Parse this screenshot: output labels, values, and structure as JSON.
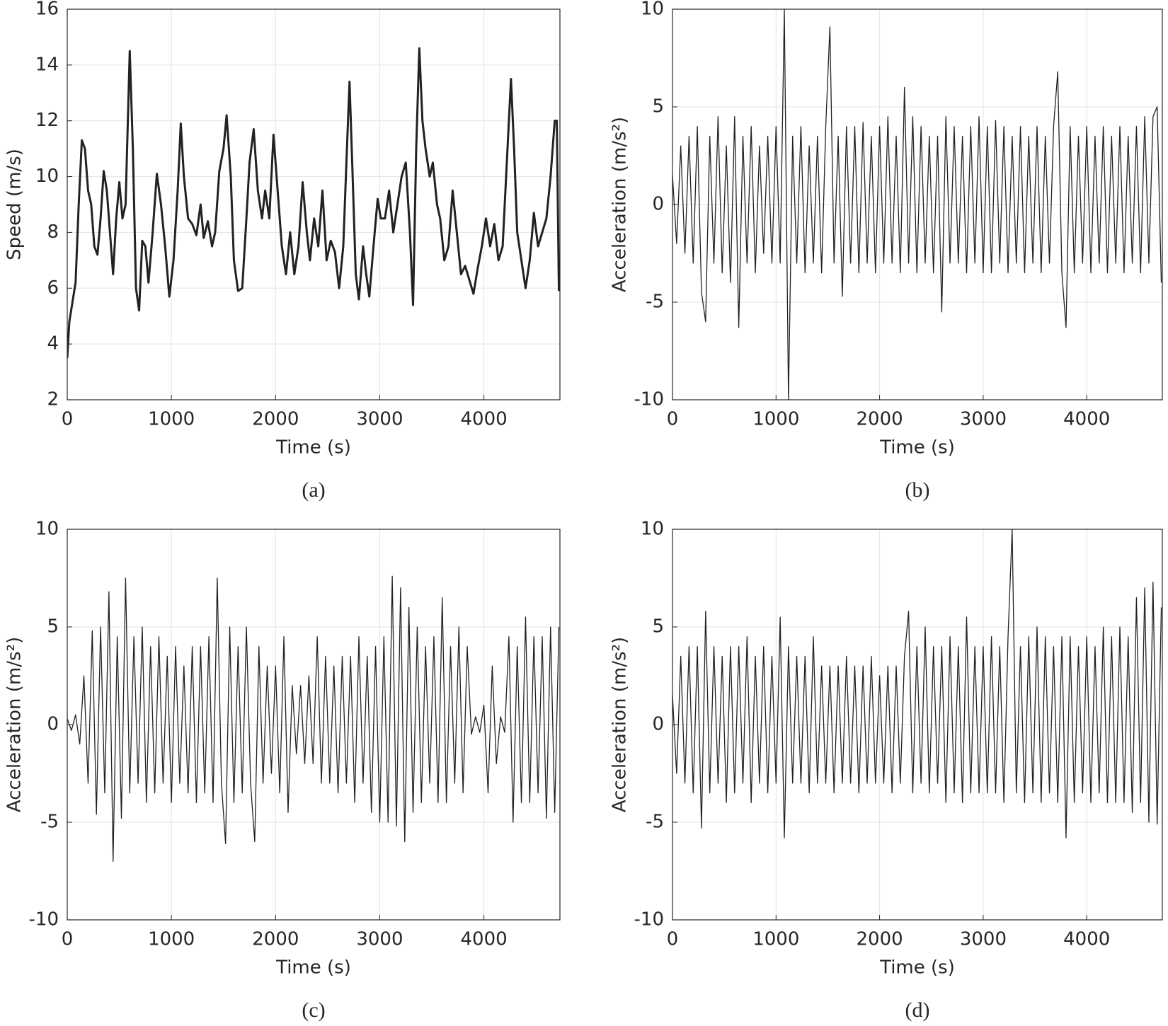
{
  "chart_data": [
    {
      "type": "line",
      "caption": "(a)",
      "xlabel": "Time (s)",
      "ylabel": "Speed (m/s)",
      "color": "#222222",
      "grid": true,
      "xlim": [
        0,
        4730
      ],
      "xticks": [
        0,
        1000,
        2000,
        3000,
        4000
      ],
      "ylim": [
        2,
        16
      ],
      "yticks": [
        2,
        4,
        6,
        8,
        10,
        12,
        14,
        16
      ],
      "x": [
        0,
        20,
        50,
        80,
        110,
        140,
        170,
        200,
        230,
        260,
        290,
        320,
        350,
        380,
        410,
        440,
        470,
        500,
        530,
        560,
        600,
        630,
        660,
        690,
        720,
        750,
        780,
        820,
        860,
        900,
        940,
        980,
        1020,
        1060,
        1090,
        1120,
        1160,
        1200,
        1240,
        1280,
        1310,
        1350,
        1390,
        1420,
        1460,
        1500,
        1530,
        1570,
        1600,
        1640,
        1680,
        1720,
        1750,
        1790,
        1830,
        1870,
        1900,
        1940,
        1980,
        2020,
        2060,
        2100,
        2140,
        2180,
        2220,
        2260,
        2300,
        2330,
        2370,
        2410,
        2450,
        2490,
        2530,
        2570,
        2610,
        2650,
        2680,
        2710,
        2740,
        2770,
        2800,
        2840,
        2870,
        2900,
        2940,
        2980,
        3010,
        3050,
        3090,
        3130,
        3170,
        3210,
        3250,
        3290,
        3320,
        3350,
        3380,
        3410,
        3440,
        3480,
        3510,
        3550,
        3580,
        3620,
        3660,
        3700,
        3740,
        3780,
        3820,
        3860,
        3900,
        3940,
        3980,
        4020,
        4060,
        4100,
        4140,
        4180,
        4220,
        4260,
        4290,
        4320,
        4360,
        4400,
        4440,
        4480,
        4520,
        4560,
        4600,
        4640,
        4680,
        4700,
        4720
      ],
      "values": [
        3.5,
        4.8,
        5.5,
        6.2,
        9,
        11.3,
        11,
        9.5,
        9,
        7.5,
        7.2,
        8.5,
        10.2,
        9.5,
        8,
        6.5,
        8.5,
        9.8,
        8.5,
        9,
        14.5,
        11,
        6,
        5.2,
        7.7,
        7.5,
        6.2,
        8,
        10.1,
        9,
        7.5,
        5.7,
        7,
        9.5,
        11.9,
        10,
        8.5,
        8.3,
        7.9,
        9,
        7.8,
        8.4,
        7.5,
        8,
        10.2,
        11,
        12.2,
        10,
        7,
        5.9,
        6,
        8.5,
        10.5,
        11.7,
        9.5,
        8.5,
        9.5,
        8.5,
        11.5,
        9.5,
        7.5,
        6.5,
        8,
        6.5,
        7.5,
        9.8,
        8,
        7,
        8.5,
        7.5,
        9.5,
        7,
        7.7,
        7.3,
        6,
        7.5,
        10.5,
        13.4,
        10,
        6.5,
        5.6,
        7.5,
        6.5,
        5.7,
        7.5,
        9.2,
        8.5,
        8.5,
        9.5,
        8,
        9,
        10,
        10.5,
        8,
        5.4,
        11,
        14.6,
        12,
        11,
        10,
        10.5,
        9,
        8.5,
        7,
        7.5,
        9.5,
        8,
        6.5,
        6.8,
        6.3,
        5.8,
        6.7,
        7.5,
        8.5,
        7.5,
        8.3,
        7,
        7.5,
        10.5,
        13.5,
        11,
        8,
        7,
        6,
        7,
        8.7,
        7.5,
        8,
        8.5,
        10,
        12,
        12,
        5.9
      ]
    },
    {
      "type": "line",
      "caption": "(b)",
      "xlabel": "Time (s)",
      "ylabel": "Acceleration (m/s²)",
      "color": "#222222",
      "grid": true,
      "xlim": [
        0,
        4730
      ],
      "xticks": [
        0,
        1000,
        2000,
        3000,
        4000
      ],
      "ylim": [
        -10,
        10
      ],
      "yticks": [
        -10,
        -5,
        0,
        5,
        10
      ],
      "x": [
        0,
        40,
        80,
        120,
        160,
        200,
        240,
        280,
        320,
        360,
        400,
        440,
        480,
        520,
        560,
        600,
        640,
        680,
        720,
        760,
        800,
        840,
        880,
        920,
        960,
        1000,
        1040,
        1080,
        1120,
        1160,
        1200,
        1240,
        1280,
        1320,
        1360,
        1400,
        1440,
        1480,
        1520,
        1560,
        1600,
        1640,
        1680,
        1720,
        1760,
        1800,
        1840,
        1880,
        1920,
        1960,
        2000,
        2040,
        2080,
        2120,
        2160,
        2200,
        2240,
        2280,
        2320,
        2360,
        2400,
        2440,
        2480,
        2520,
        2560,
        2600,
        2640,
        2680,
        2720,
        2760,
        2800,
        2840,
        2880,
        2920,
        2960,
        3000,
        3040,
        3080,
        3120,
        3160,
        3200,
        3240,
        3280,
        3320,
        3360,
        3400,
        3440,
        3480,
        3520,
        3560,
        3600,
        3640,
        3680,
        3720,
        3760,
        3800,
        3840,
        3880,
        3920,
        3960,
        4000,
        4040,
        4080,
        4120,
        4160,
        4200,
        4240,
        4280,
        4320,
        4360,
        4400,
        4440,
        4480,
        4520,
        4560,
        4600,
        4640,
        4680,
        4720
      ],
      "values": [
        1.5,
        -2,
        3,
        -2.5,
        3.5,
        -3,
        4,
        -4.5,
        -6,
        3.5,
        -3,
        4.5,
        -3.5,
        3,
        -4,
        4.5,
        -6.3,
        3.5,
        -3,
        4,
        -3.5,
        3,
        -2.5,
        3.5,
        -3,
        4,
        -3,
        10,
        -10,
        3.5,
        -3,
        4,
        -3.5,
        3,
        -3,
        3.5,
        -3.5,
        4,
        9.1,
        -3,
        3.5,
        -4.7,
        4,
        -3,
        4,
        -3.5,
        4.2,
        -3,
        3.5,
        -3.5,
        4,
        -3,
        4.5,
        -3,
        3.5,
        -3.5,
        6,
        -3,
        4.5,
        -3.5,
        4,
        -3,
        3.5,
        -3.5,
        3.5,
        -5.5,
        4.5,
        -3,
        4,
        -3,
        3.5,
        -3.5,
        4,
        -3,
        4.5,
        -3.5,
        4,
        -3.5,
        4.3,
        -3,
        4,
        -3.5,
        3.5,
        -3,
        4,
        -3.5,
        3.5,
        -3,
        4,
        -3.5,
        3.5,
        -3,
        4,
        6.8,
        -3.5,
        -6.3,
        4,
        -3.5,
        3.5,
        -3,
        4,
        -3.5,
        3.5,
        -3,
        4,
        -3.5,
        3.5,
        -3,
        4,
        -3.5,
        3.5,
        -3,
        4,
        -3.5,
        4.5,
        -3,
        4.5,
        5,
        -4
      ]
    },
    {
      "type": "line",
      "caption": "(c)",
      "xlabel": "Time (s)",
      "ylabel": "Acceleration (m/s²)",
      "color": "#222222",
      "grid": true,
      "xlim": [
        0,
        4730
      ],
      "xticks": [
        0,
        1000,
        2000,
        3000,
        4000
      ],
      "ylim": [
        -10,
        10
      ],
      "yticks": [
        -10,
        -5,
        0,
        5,
        10
      ],
      "x": [
        0,
        40,
        80,
        120,
        160,
        200,
        240,
        280,
        320,
        360,
        400,
        440,
        480,
        520,
        560,
        600,
        640,
        680,
        720,
        760,
        800,
        840,
        880,
        920,
        960,
        1000,
        1040,
        1080,
        1120,
        1160,
        1200,
        1240,
        1280,
        1320,
        1360,
        1400,
        1440,
        1480,
        1520,
        1560,
        1600,
        1640,
        1680,
        1720,
        1760,
        1800,
        1840,
        1880,
        1920,
        1960,
        2000,
        2040,
        2080,
        2120,
        2160,
        2200,
        2240,
        2280,
        2320,
        2360,
        2400,
        2440,
        2480,
        2520,
        2560,
        2600,
        2640,
        2680,
        2720,
        2760,
        2800,
        2840,
        2880,
        2920,
        2960,
        3000,
        3040,
        3080,
        3120,
        3160,
        3200,
        3240,
        3280,
        3320,
        3360,
        3400,
        3440,
        3480,
        3520,
        3560,
        3600,
        3640,
        3680,
        3720,
        3760,
        3800,
        3840,
        3880,
        3920,
        3960,
        4000,
        4040,
        4080,
        4120,
        4160,
        4200,
        4240,
        4280,
        4320,
        4360,
        4400,
        4440,
        4480,
        4520,
        4560,
        4600,
        4640,
        4680,
        4720
      ],
      "values": [
        0.3,
        -0.3,
        0.5,
        -1,
        2.5,
        -3,
        4.8,
        -4.6,
        5,
        -3.5,
        6.8,
        -7,
        4.5,
        -4.8,
        7.5,
        -3.5,
        4.5,
        -3,
        5,
        -4,
        4,
        -3.5,
        4.5,
        -3,
        3.5,
        -4,
        4,
        -3,
        3,
        -3.5,
        4,
        -4,
        4,
        -3.5,
        4.5,
        -4,
        7.5,
        -3,
        -6.1,
        5,
        -4,
        4,
        -3.5,
        5,
        -3,
        -6,
        4,
        -3,
        3,
        -2.5,
        3,
        -3.5,
        4.5,
        -4.5,
        2,
        -1.5,
        2,
        -2,
        2.5,
        -2,
        4.5,
        -3,
        3.5,
        -3,
        3,
        -3.5,
        3.5,
        -3,
        3.5,
        -4,
        4.5,
        -3,
        3.5,
        -4.5,
        4,
        -5,
        4.5,
        -5,
        7.6,
        -5.2,
        7,
        -6,
        6,
        -4.5,
        5,
        -4,
        4,
        -3,
        4.5,
        -4,
        6.5,
        -4,
        4,
        -3,
        5,
        -3.5,
        4,
        -0.5,
        0.4,
        -0.4,
        1,
        -3.5,
        3,
        -2,
        0.4,
        -0.4,
        4.5,
        -5,
        4,
        -4,
        5.5,
        -4,
        4.5,
        -3.5,
        4.5,
        -4.8,
        5,
        -4.5,
        5
      ]
    },
    {
      "type": "line",
      "caption": "(d)",
      "xlabel": "Time (s)",
      "ylabel": "Acceleration (m/s²)",
      "color": "#222222",
      "grid": true,
      "xlim": [
        0,
        4730
      ],
      "xticks": [
        0,
        1000,
        2000,
        3000,
        4000
      ],
      "ylim": [
        -10,
        10
      ],
      "yticks": [
        -10,
        -5,
        0,
        5,
        10
      ],
      "x": [
        0,
        40,
        80,
        120,
        160,
        200,
        240,
        280,
        320,
        360,
        400,
        440,
        480,
        520,
        560,
        600,
        640,
        680,
        720,
        760,
        800,
        840,
        880,
        920,
        960,
        1000,
        1040,
        1080,
        1120,
        1160,
        1200,
        1240,
        1280,
        1320,
        1360,
        1400,
        1440,
        1480,
        1520,
        1560,
        1600,
        1640,
        1680,
        1720,
        1760,
        1800,
        1840,
        1880,
        1920,
        1960,
        2000,
        2040,
        2080,
        2120,
        2160,
        2200,
        2240,
        2280,
        2320,
        2360,
        2400,
        2440,
        2480,
        2520,
        2560,
        2600,
        2640,
        2680,
        2720,
        2760,
        2800,
        2840,
        2880,
        2920,
        2960,
        3000,
        3040,
        3080,
        3120,
        3160,
        3200,
        3240,
        3280,
        3320,
        3360,
        3400,
        3440,
        3480,
        3520,
        3560,
        3600,
        3640,
        3680,
        3720,
        3760,
        3800,
        3840,
        3880,
        3920,
        3960,
        4000,
        4040,
        4080,
        4120,
        4160,
        4200,
        4240,
        4280,
        4320,
        4360,
        4400,
        4440,
        4480,
        4520,
        4560,
        4600,
        4640,
        4680,
        4720
      ],
      "values": [
        1.5,
        -2.5,
        3.5,
        -3,
        4,
        -3.5,
        4,
        -5.3,
        5.8,
        -3.5,
        4,
        -3,
        3.5,
        -4,
        4,
        -3.5,
        4,
        -3,
        4.5,
        -4,
        3.5,
        -3,
        4,
        -3.5,
        3.5,
        -3,
        5.5,
        -5.8,
        4,
        -3,
        3.5,
        -3,
        3.5,
        -3.5,
        4.5,
        -3,
        3,
        -3,
        3,
        -3.5,
        3,
        -3,
        3.5,
        -3,
        3,
        -3.5,
        3,
        -3,
        3.5,
        -3,
        2.5,
        -3,
        3,
        -3.5,
        3,
        -3,
        3.5,
        5.8,
        -3.5,
        4,
        -3,
        5,
        -3.5,
        4,
        -3,
        4,
        -4,
        4.5,
        -3.5,
        4,
        -4,
        5.5,
        -3.5,
        4,
        -3.5,
        4,
        -3.5,
        4.5,
        -3.5,
        4,
        -4,
        4.5,
        10,
        -3.5,
        4,
        -4,
        4.5,
        -3.5,
        5,
        -4,
        4.5,
        -3.5,
        4,
        -4,
        4.5,
        -5.8,
        4.5,
        -4,
        4,
        -3.5,
        4.5,
        -4,
        4,
        -3.5,
        5,
        -4,
        4.5,
        -4,
        5,
        -4,
        4.5,
        -4.5,
        6.5,
        -4,
        7,
        -5,
        7.3,
        -5.1,
        6
      ]
    }
  ]
}
